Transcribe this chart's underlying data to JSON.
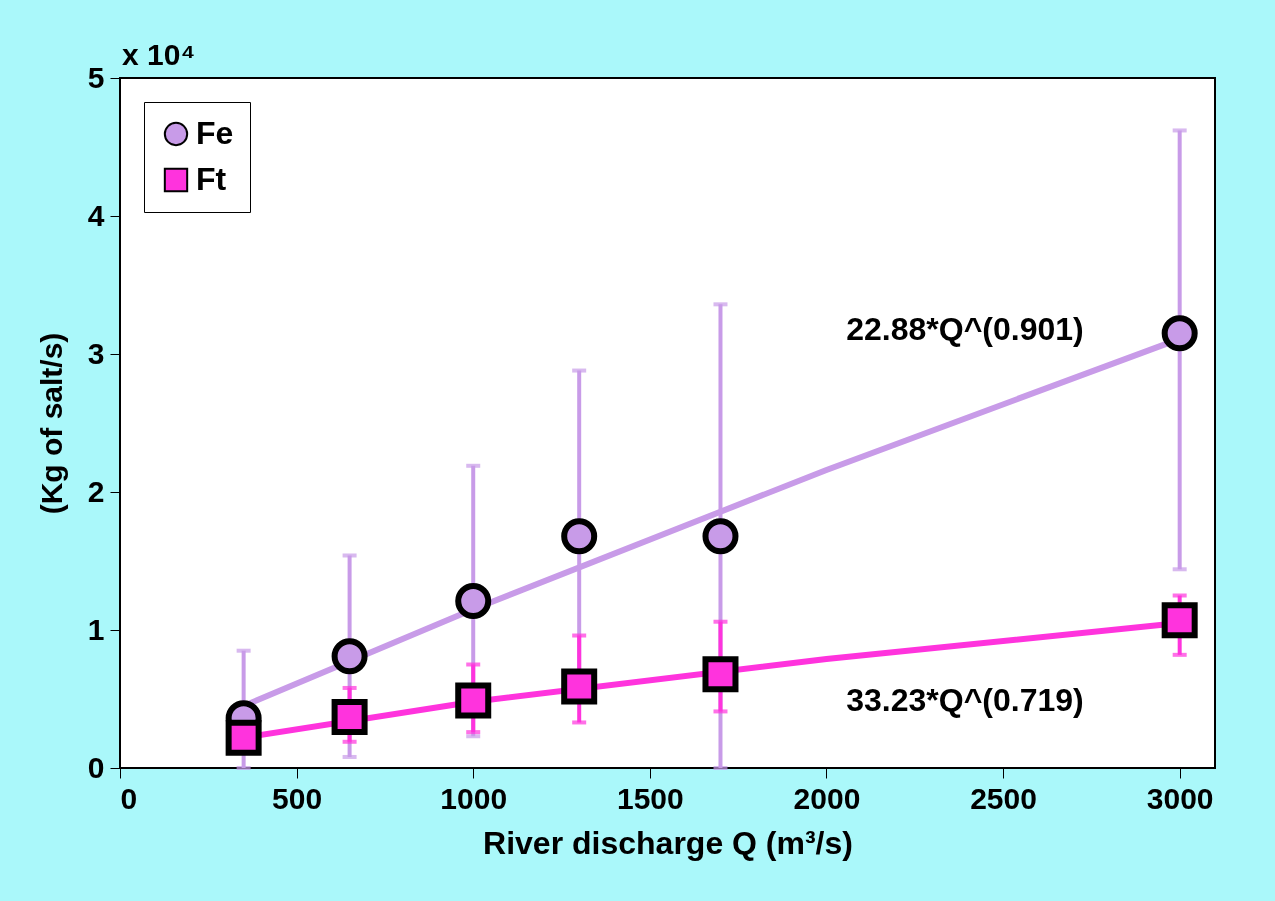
{
  "chart_data": {
    "type": "scatter",
    "xlabel": "River discharge Q (m³/s)",
    "ylabel": "(Kg of salt/s)",
    "xlim": [
      0,
      3100
    ],
    "xticks": [
      0,
      500,
      1000,
      1500,
      2000,
      2500,
      3000
    ],
    "ylim": [
      0,
      5
    ],
    "yticks": [
      0,
      1,
      2,
      3,
      4,
      5
    ],
    "x": [
      350,
      650,
      1000,
      1300,
      1700,
      3000
    ],
    "series": [
      {
        "name": "Fe",
        "color": "#c89be8",
        "marker": "circle",
        "values": [
          0.36,
          0.81,
          1.21,
          1.68,
          1.68,
          3.15
        ],
        "errors": [
          [
            0,
            0.85
          ],
          [
            0.08,
            1.54
          ],
          [
            0.23,
            2.19
          ],
          [
            0.48,
            2.88
          ],
          [
            0,
            3.36
          ],
          [
            1.44,
            4.62
          ]
        ]
      },
      {
        "name": "Ft",
        "color": "#ff33dd",
        "marker": "square",
        "values": [
          0.22,
          0.37,
          0.49,
          0.59,
          0.68,
          1.07
        ],
        "errors": [
          null,
          [
            0.19,
            0.58
          ],
          [
            0.26,
            0.75
          ],
          [
            0.33,
            0.96
          ],
          [
            0.41,
            1.06
          ],
          [
            0.82,
            1.25
          ]
        ]
      },
      {
        "type": "line",
        "color": "#c89be8",
        "x": [
          350,
          1000,
          2000,
          3000
        ],
        "values": [
          0.45,
          1.15,
          2.16,
          3.11
        ]
      },
      {
        "type": "line",
        "color": "#ff33dd",
        "x": [
          350,
          1000,
          2000,
          3000
        ],
        "values": [
          0.22,
          0.48,
          0.79,
          1.05
        ]
      }
    ],
    "annotations": [
      "22.88*Q^(0.901)",
      "33.23*Q^(0.719)",
      "x 10⁴"
    ],
    "legend": "top left",
    "grid": false
  }
}
